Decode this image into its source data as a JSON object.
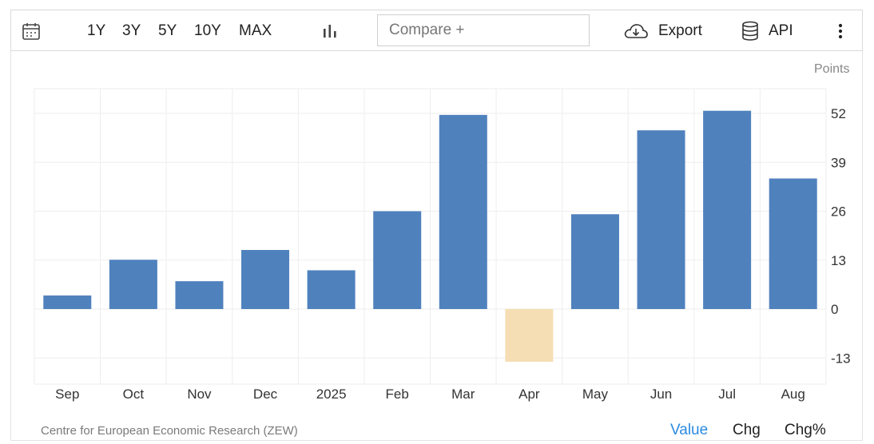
{
  "toolbar": {
    "ranges": [
      "1Y",
      "3Y",
      "5Y",
      "10Y",
      "MAX"
    ],
    "compare_placeholder": "Compare +",
    "export_label": "Export",
    "api_label": "API"
  },
  "units_label": "Points",
  "source": "Centre for European Economic Research (ZEW)",
  "view_tabs": [
    "Value",
    "Chg",
    "Chg%"
  ],
  "colors": {
    "positive_bar": "#4f81bd",
    "negative_bar": "#f5deb3",
    "active_tab": "#2a8be0",
    "grid": "#eeeeee"
  },
  "chart_data": {
    "type": "bar",
    "categories": [
      "Sep",
      "Oct",
      "Nov",
      "Dec",
      "2025",
      "Feb",
      "Mar",
      "Apr",
      "May",
      "Jun",
      "Jul",
      "Aug"
    ],
    "values": [
      3.6,
      13.1,
      7.4,
      15.7,
      10.3,
      26.0,
      51.6,
      -14.0,
      25.2,
      47.5,
      52.7,
      34.7
    ],
    "title": "",
    "xlabel": "",
    "ylabel": "Points",
    "yticks": [
      -13,
      0,
      13,
      26,
      39,
      52
    ],
    "ylim": [
      -19,
      58
    ],
    "grid": true,
    "y_axis_side": "right"
  }
}
